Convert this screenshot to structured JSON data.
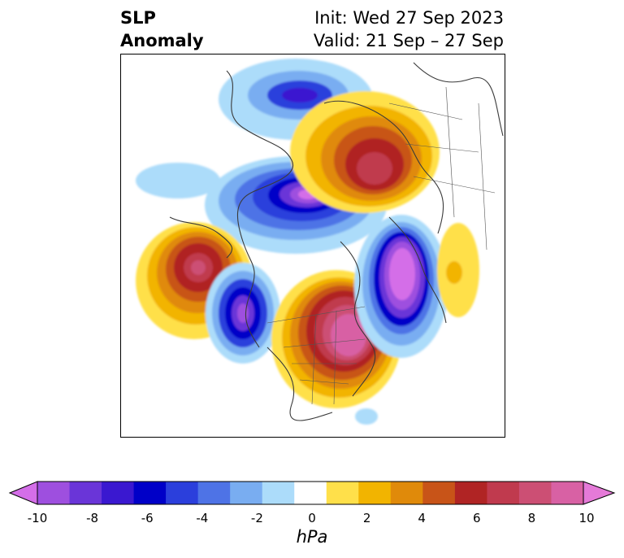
{
  "title": {
    "left_line1": "SLP",
    "left_line2": "Anomaly",
    "init": "Init: Wed 27 Sep 2023",
    "valid": "Valid: 21 Sep – 27 Sep"
  },
  "colorbar": {
    "unit": "hPa",
    "ticks": [
      "-10",
      "-8",
      "-6",
      "-4",
      "-2",
      "0",
      "2",
      "4",
      "6",
      "8",
      "10"
    ],
    "colors": [
      "#d46ee8",
      "#9e4fdf",
      "#6a35d8",
      "#3a18d0",
      "#0000c8",
      "#2b3fdc",
      "#4e73e6",
      "#79adf1",
      "#acdcfa",
      "#ffffff",
      "#ffe04a",
      "#f2b400",
      "#e08a0a",
      "#c85418",
      "#b02424",
      "#c03a4e",
      "#cc4f74",
      "#d861a4",
      "#e57ad8"
    ]
  },
  "map": {
    "projection": "north-polar-stereographic",
    "features": [
      "coastlines",
      "country-borders",
      "us-state-borders"
    ]
  }
}
